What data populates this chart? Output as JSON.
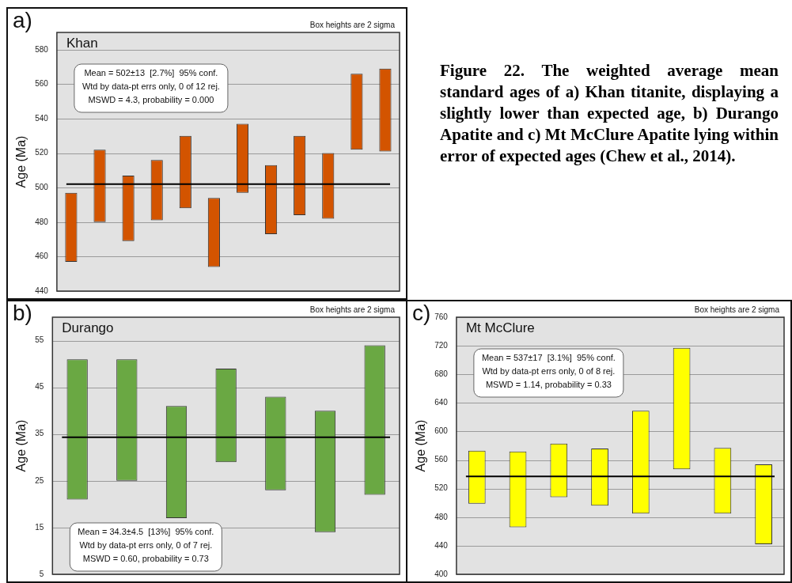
{
  "chart_data": [
    {
      "type": "bar",
      "title": "Khan",
      "ylabel": "Age (Ma)",
      "categories": [
        null,
        null,
        null,
        null,
        null,
        null,
        null,
        null,
        null,
        null,
        null,
        null
      ],
      "base": [
        457,
        480,
        469,
        481,
        488,
        454,
        497,
        473,
        484,
        482,
        522,
        521
      ],
      "values": [
        40,
        42,
        38,
        35,
        42,
        40,
        40,
        40,
        46,
        38,
        44,
        48
      ],
      "color": "#d35400",
      "ylim": [
        440,
        590
      ],
      "yticks": [
        440,
        460,
        480,
        500,
        520,
        540,
        560,
        580
      ],
      "grid": "y",
      "tick_labels": "y",
      "ref_lines": [
        {
          "axis": "y",
          "value": 502,
          "color": "#000000"
        }
      ],
      "annotations": [
        "a)",
        "Box heights are 2 sigma",
        "Mean = 502±13  [2.7%]  95% conf.",
        "Wtd by data-pt errs only, 0 of 12 rej.",
        "MSWD = 4.3, probability = 0.000"
      ]
    },
    {
      "type": "other",
      "title": "Figure 22. The weighted average mean standard ages of a) Khan titanite, displaying a slightly lower than expected age, b) Durango Apatite and c) Mt McClure Apatite lying within error of expected ages (Chew et al., 2014)."
    },
    {
      "type": "bar",
      "title": "Durango",
      "ylabel": "Age (Ma)",
      "categories": [
        null,
        null,
        null,
        null,
        null,
        null,
        null
      ],
      "base": [
        21,
        25,
        17,
        29,
        23,
        14,
        22
      ],
      "values": [
        30,
        26,
        24,
        20,
        20,
        26,
        32
      ],
      "color": "#6aa843",
      "ylim": [
        5,
        60
      ],
      "yticks": [
        5,
        15,
        25,
        35,
        45,
        55
      ],
      "grid": "y",
      "tick_labels": "y",
      "ref_lines": [
        {
          "axis": "y",
          "value": 34.3,
          "color": "#000000"
        }
      ],
      "annotations": [
        "b)",
        "Box heights are 2 sigma",
        "Mean = 34.3±4.5  [13%]  95% conf.",
        "Wtd by data-pt errs only, 0 of 7 rej.",
        "MSWD = 0.60, probability = 0.73"
      ]
    },
    {
      "type": "bar",
      "title": "Mt McClure",
      "ylabel": "Age (Ma)",
      "categories": [
        null,
        null,
        null,
        null,
        null,
        null,
        null,
        null
      ],
      "base": [
        499,
        466,
        508,
        496,
        485,
        547,
        485,
        442
      ],
      "values": [
        74,
        106,
        75,
        80,
        144,
        170,
        92,
        112
      ],
      "color": "#ffff00",
      "ylim": [
        400,
        760
      ],
      "yticks": [
        400,
        440,
        480,
        520,
        560,
        600,
        640,
        680,
        720,
        760
      ],
      "grid": "y",
      "tick_labels": "y",
      "ref_lines": [
        {
          "axis": "y",
          "value": 537,
          "color": "#000000"
        }
      ],
      "annotations": [
        "c)",
        "Box heights are 2 sigma",
        "Mean = 537±17  [3.1%]  95% conf.",
        "Wtd by data-pt errs only, 0 of 8 rej.",
        "MSWD = 1.14, probability = 0.33"
      ]
    }
  ]
}
